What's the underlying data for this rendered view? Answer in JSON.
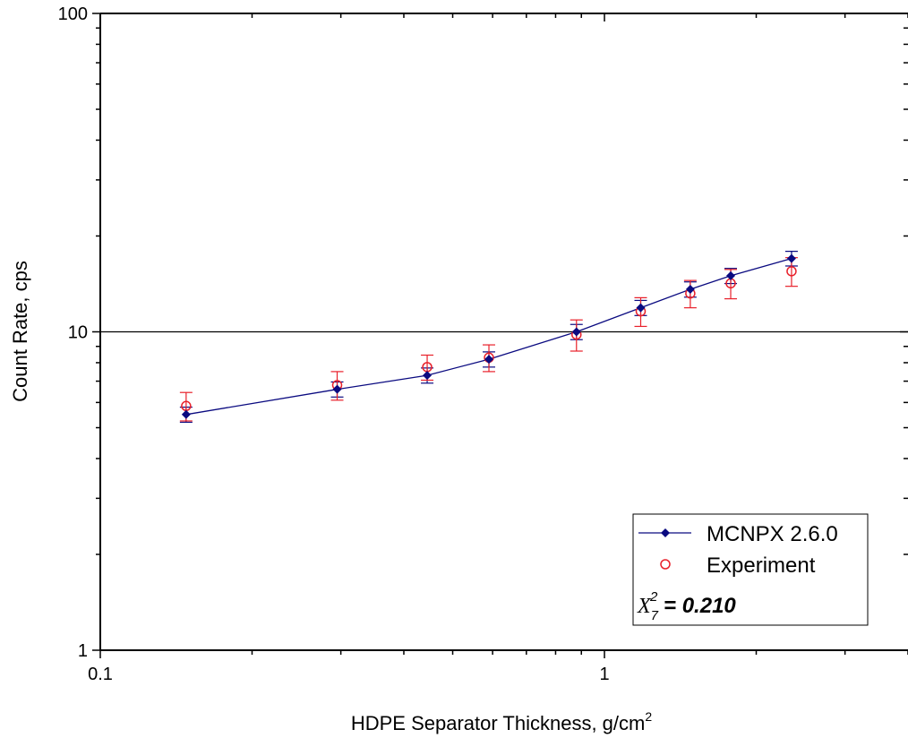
{
  "chart_data": {
    "type": "scatter",
    "xlabel": "HDPE Separator Thickness, g/cm",
    "xlabel_sup": "2",
    "ylabel": "Count Rate, cps",
    "x_scale": "log",
    "y_scale": "log",
    "xlim": [
      0.1,
      4.0
    ],
    "ylim": [
      1,
      100
    ],
    "x_tick_labels": [
      {
        "value": 0.1,
        "label": "0.1"
      },
      {
        "value": 1,
        "label": "1"
      }
    ],
    "y_tick_labels": [
      {
        "value": 1,
        "label": "1"
      },
      {
        "value": 10,
        "label": "10"
      },
      {
        "value": 100,
        "label": "100"
      }
    ],
    "reference_line_y": 10,
    "grid": false,
    "legend_position": "bottom-right",
    "series": [
      {
        "name": "MCNPX 2.6.0",
        "marker": "diamond",
        "line": true,
        "color": "#0a0a80",
        "x": [
          0.148,
          0.295,
          0.445,
          0.59,
          0.88,
          1.18,
          1.48,
          1.78,
          2.35
        ],
        "y": [
          5.5,
          6.6,
          7.3,
          8.2,
          10.0,
          11.9,
          13.6,
          15.0,
          17.0
        ],
        "err": [
          0.3,
          0.36,
          0.4,
          0.45,
          0.55,
          0.65,
          0.75,
          0.82,
          0.9
        ]
      },
      {
        "name": "Experiment",
        "marker": "open-circle",
        "line": false,
        "color": "#e8202a",
        "x": [
          0.148,
          0.295,
          0.445,
          0.59,
          0.88,
          1.18,
          1.48,
          1.78,
          2.35
        ],
        "y": [
          5.85,
          6.8,
          7.75,
          8.3,
          9.8,
          11.6,
          13.2,
          14.2,
          15.5
        ],
        "err": [
          0.6,
          0.7,
          0.7,
          0.8,
          1.1,
          1.2,
          1.3,
          1.5,
          1.6
        ]
      }
    ],
    "annotation": {
      "chi_symbol": "X",
      "chi_sub": "7",
      "chi_sup": "2",
      "chi_value": " = 0.210"
    }
  }
}
